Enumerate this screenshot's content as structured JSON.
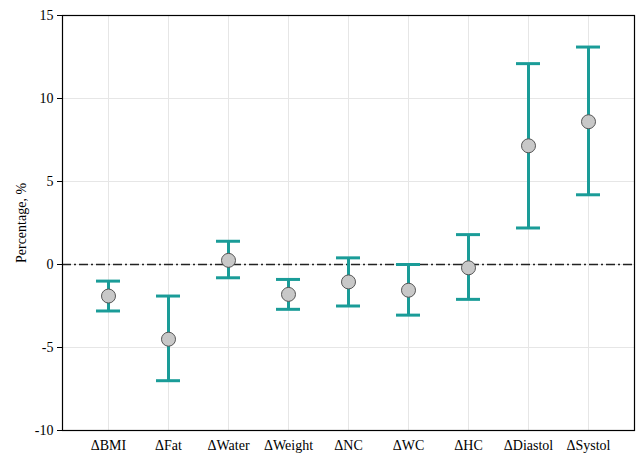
{
  "chart_data": {
    "type": "scatter",
    "y_label": "Percentage, %",
    "categories": [
      "ΔBMI",
      "ΔFat",
      "ΔWater",
      "ΔWeight",
      "ΔNC",
      "ΔWC",
      "ΔHC",
      "ΔDiastol",
      "ΔSystol"
    ],
    "values": [
      -1.9,
      -4.5,
      0.25,
      -1.8,
      -1.05,
      -1.55,
      -0.2,
      7.15,
      8.6
    ],
    "lower": [
      -2.8,
      -7.0,
      -0.8,
      -2.7,
      -2.5,
      -3.05,
      -2.1,
      2.2,
      4.2
    ],
    "upper": [
      -1.0,
      -1.9,
      1.4,
      -0.9,
      0.4,
      0.0,
      1.8,
      12.1,
      13.1
    ],
    "color": "#1a9c98",
    "marker": "circle",
    "ylim": [
      -10,
      15
    ],
    "yticks": [
      -10,
      -5,
      0,
      5,
      10,
      15
    ],
    "grid": true,
    "reference_lines": [
      {
        "y": 0,
        "line_style": "dashdot"
      }
    ]
  }
}
